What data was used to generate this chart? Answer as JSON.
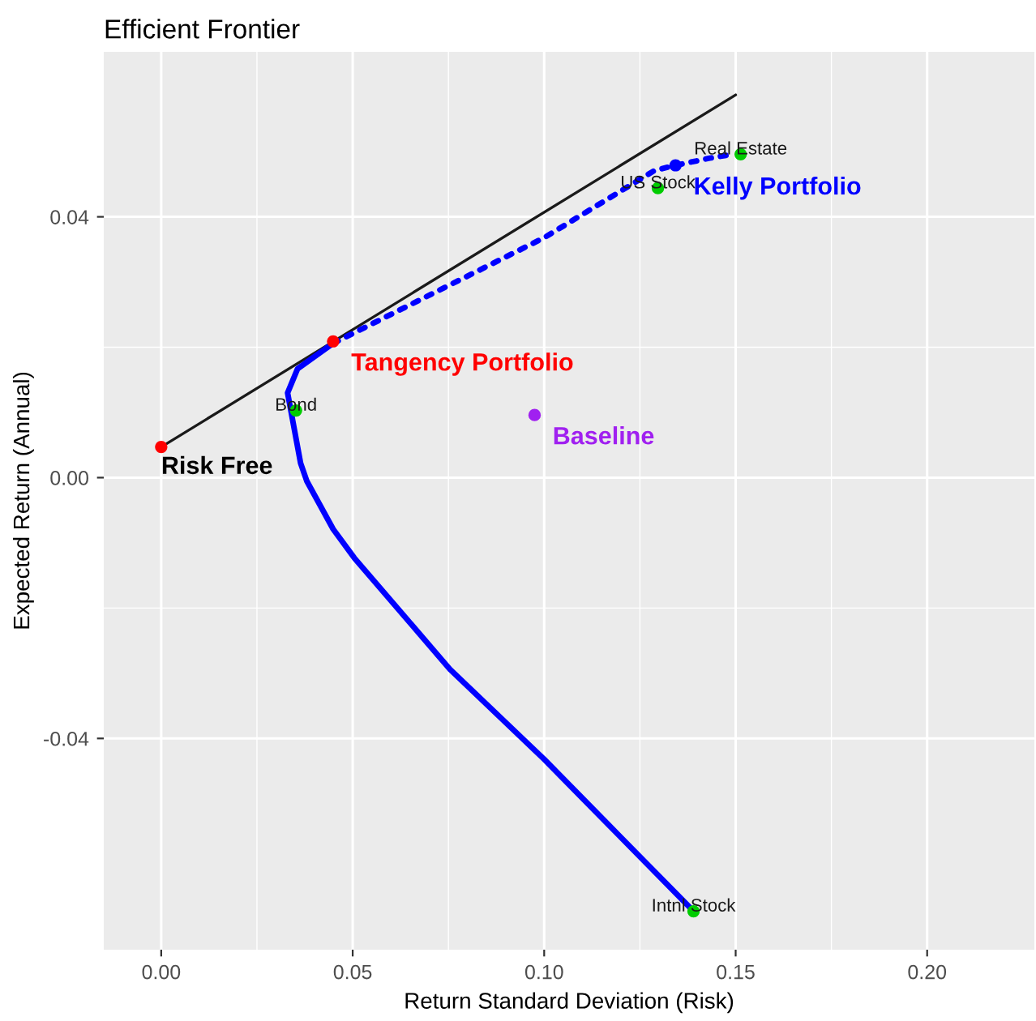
{
  "chart_data": {
    "type": "scatter",
    "title": "Efficient Frontier",
    "xlabel": "Return Standard Deviation (Risk)",
    "ylabel": "Expected Return (Annual)",
    "xlim": [
      -0.015,
      0.228
    ],
    "ylim": [
      -0.0724,
      0.0653
    ],
    "xticks": [
      {
        "value": 0,
        "label": "0.00"
      },
      {
        "value": 0.05,
        "label": "0.05"
      },
      {
        "value": 0.1,
        "label": "0.10"
      },
      {
        "value": 0.15,
        "label": "0.15"
      },
      {
        "value": 0.2,
        "label": "0.20"
      }
    ],
    "yticks": [
      {
        "value": -0.04,
        "label": "-0.04"
      },
      {
        "value": 0,
        "label": "0.00"
      },
      {
        "value": 0.04,
        "label": "0.04"
      }
    ],
    "grid": true,
    "legend": false,
    "series": [
      {
        "type": "line",
        "color": "#1a1a1a",
        "x": [
          0,
          0.15
        ],
        "values": [
          0.0047,
          0.0587
        ]
      },
      {
        "type": "line",
        "color": "#0000ff",
        "x": [
          0.139,
          0.1,
          0.0754,
          0.0504,
          0.0449,
          0.038,
          0.0364,
          0.033,
          0.0356,
          0.0449
        ],
        "values": [
          -0.0665,
          -0.0432,
          -0.0294,
          -0.0123,
          -0.0079,
          -0.0005,
          0.0022,
          0.013,
          0.0167,
          0.0206
        ]
      },
      {
        "type": "line",
        "line_style": "dotted",
        "color": "#0000ff",
        "x": [
          0.0449,
          0.1,
          0.1288,
          0.1343,
          0.1432,
          0.1492
        ],
        "values": [
          0.0206,
          0.0368,
          0.0471,
          0.0479,
          0.049,
          0.0496
        ]
      },
      {
        "color": "#00cc00",
        "x": [
          0.0352,
          0.1297,
          0.1513,
          0.139
        ],
        "values": [
          0.0103,
          0.0444,
          0.0496,
          -0.0665
        ],
        "value_labels": [
          "Bond",
          "US Stock",
          "Real Estate",
          "Intnl Stock"
        ]
      },
      {
        "color": "#ff0000",
        "x": [
          0
        ],
        "values": [
          0.0047
        ]
      },
      {
        "name": "Tangency Portfolio",
        "color": "#ff0000",
        "x": [
          0.0449
        ],
        "values": [
          0.0209
        ]
      },
      {
        "name": "Baseline",
        "color": "#a020f0",
        "x": [
          0.0975
        ],
        "values": [
          0.0096
        ]
      },
      {
        "name": "Kelly Portfolio",
        "color": "#0000ff",
        "x": [
          0.1343
        ],
        "values": [
          0.0479
        ]
      }
    ],
    "annotations": [
      {
        "text": "Risk Free",
        "x": 0,
        "y": 0.0047
      }
    ]
  }
}
